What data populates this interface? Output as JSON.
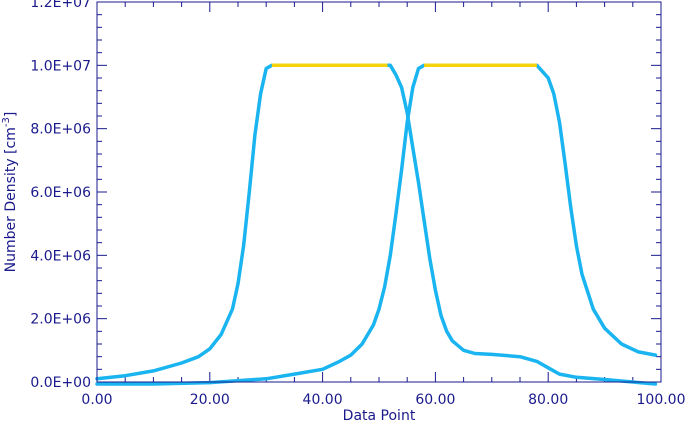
{
  "chart_data": {
    "type": "line",
    "title": "",
    "xlabel": "Data Point",
    "ylabel": "Number Density [cm",
    "ylabel_sup": "-3",
    "ylabel_end": "]",
    "xlim": [
      0,
      100
    ],
    "ylim": [
      0,
      12000000
    ],
    "x_ticks": [
      0,
      20,
      40,
      60,
      80,
      100
    ],
    "x_tick_labels": [
      "0.00",
      "20.00",
      "40.00",
      "60.00",
      "80.00",
      "100.00"
    ],
    "y_ticks": [
      0,
      2000000,
      4000000,
      6000000,
      8000000,
      10000000,
      12000000
    ],
    "y_tick_labels": [
      "0.0E+00",
      "2.0E+06",
      "4.0E+06",
      "6.0E+06",
      "8.0E+06",
      "1.0E+07",
      "1.2E+07"
    ],
    "grid": false,
    "colors": {
      "axis": "#1a1a8c",
      "curve": "#1ab4f0",
      "highlight": "#f5d30f"
    },
    "series": [
      {
        "color": "#1ab4f0",
        "x": [
          0,
          5,
          10,
          15,
          18,
          20,
          22,
          24,
          25,
          26,
          27,
          28,
          29,
          30,
          31,
          32,
          35,
          40,
          45,
          50,
          52,
          53,
          54,
          55,
          56,
          57,
          58,
          59,
          60,
          61,
          62,
          63,
          65,
          67,
          70,
          75,
          78,
          80,
          82,
          85,
          90,
          95,
          99
        ],
        "y": [
          100000,
          200000,
          350000,
          600000,
          800000,
          1050000,
          1500000,
          2300000,
          3100000,
          4300000,
          6000000,
          7800000,
          9100000,
          9900000,
          10000000,
          10000000,
          10000000,
          10000000,
          10000000,
          10000000,
          10000000,
          9700000,
          9300000,
          8500000,
          7400000,
          6300000,
          5100000,
          3900000,
          2900000,
          2100000,
          1600000,
          1300000,
          1000000,
          900000,
          870000,
          800000,
          650000,
          450000,
          250000,
          150000,
          80000,
          0,
          -100000
        ]
      },
      {
        "color": "#1ab4f0",
        "x": [
          0,
          10,
          20,
          30,
          35,
          40,
          43,
          45,
          47,
          49,
          50,
          51,
          52,
          53,
          54,
          55,
          56,
          57,
          58,
          60,
          65,
          70,
          75,
          78,
          79,
          80,
          81,
          82,
          83,
          84,
          85,
          86,
          88,
          90,
          93,
          96,
          99
        ],
        "y": [
          -100000,
          -80000,
          -20000,
          100000,
          250000,
          400000,
          650000,
          850000,
          1200000,
          1800000,
          2300000,
          3000000,
          4000000,
          5300000,
          6700000,
          8200000,
          9300000,
          9900000,
          10000000,
          10000000,
          10000000,
          10000000,
          10000000,
          10000000,
          9800000,
          9600000,
          9100000,
          8200000,
          6900000,
          5500000,
          4300000,
          3400000,
          2300000,
          1700000,
          1200000,
          950000,
          850000
        ]
      }
    ],
    "highlights": [
      {
        "color": "#f5d30f",
        "x": [
          31,
          51.5
        ],
        "y": [
          10000000,
          10000000
        ]
      },
      {
        "color": "#f5d30f",
        "x": [
          58,
          78
        ],
        "y": [
          10000000,
          10000000
        ]
      }
    ]
  }
}
